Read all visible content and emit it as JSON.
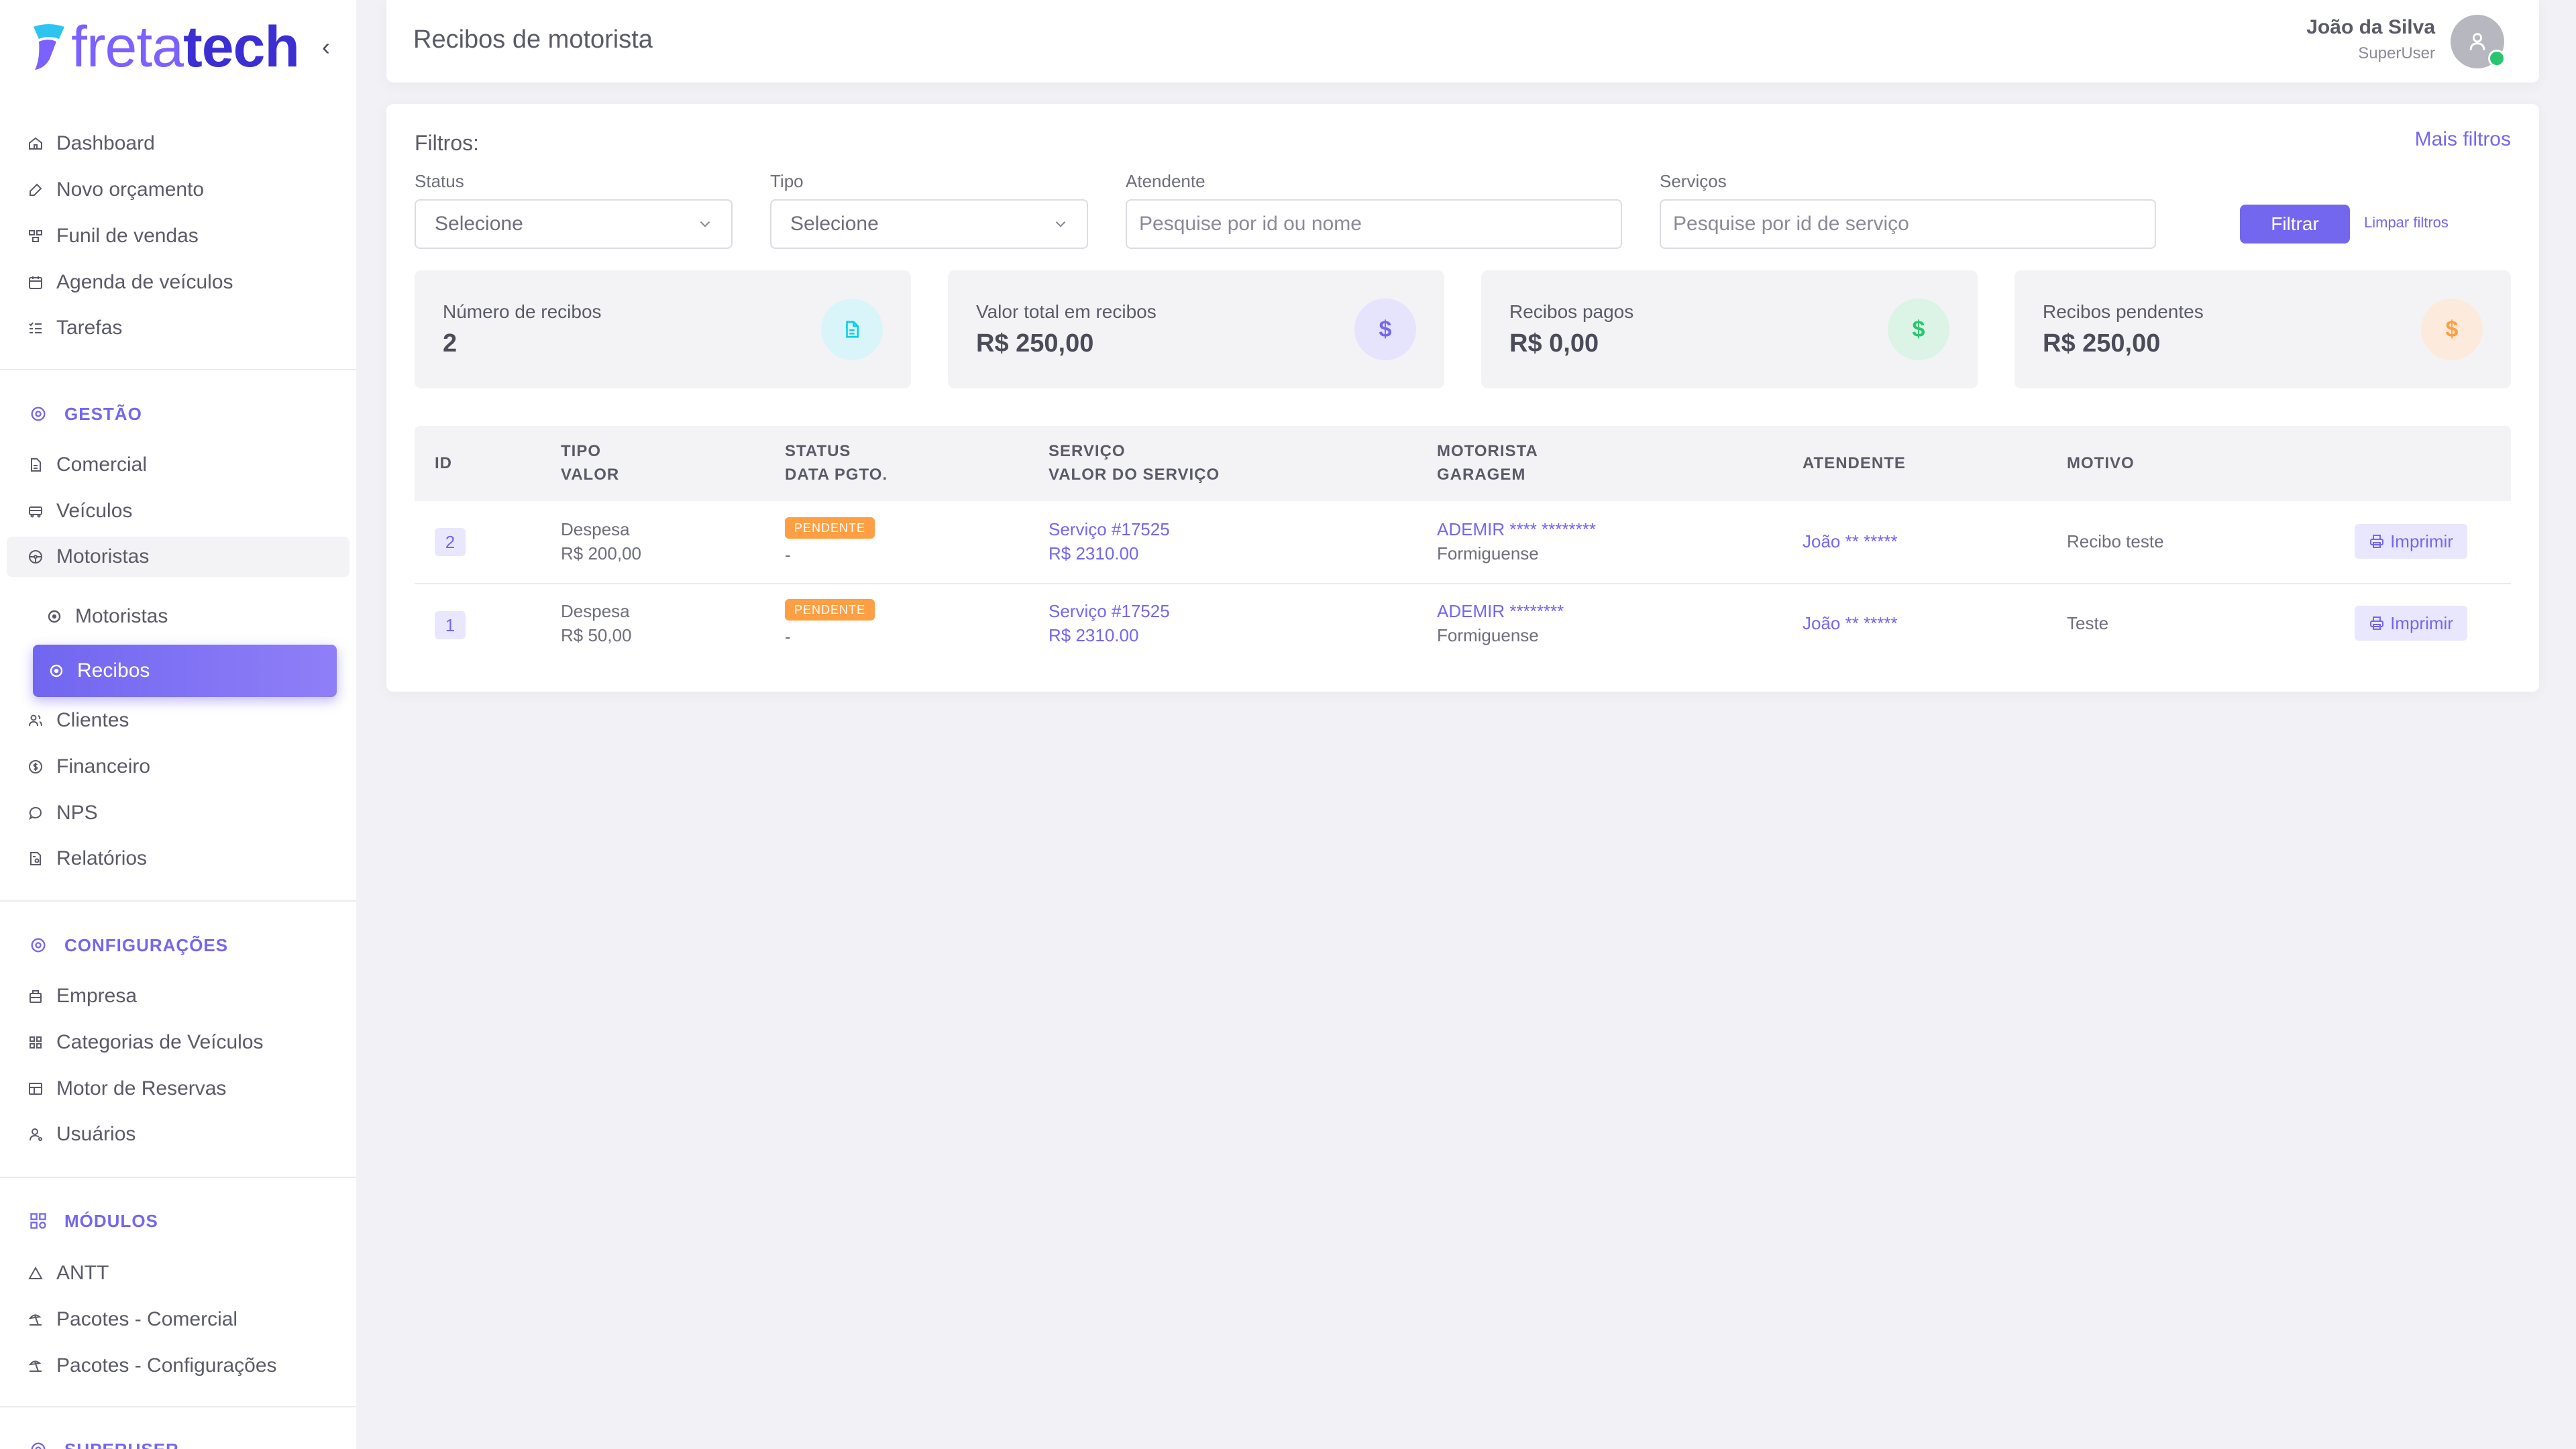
{
  "brand": {
    "part1": "freta",
    "part2": "tech"
  },
  "sidebar": {
    "collapse_glyph": "‹",
    "top": [
      {
        "label": "Dashboard",
        "icon": "home-icon"
      },
      {
        "label": "Novo orçamento",
        "icon": "edit-icon"
      },
      {
        "label": "Funil de vendas",
        "icon": "funnel-icon"
      },
      {
        "label": "Agenda de veículos",
        "icon": "calendar-icon"
      },
      {
        "label": "Tarefas",
        "icon": "list-check-icon"
      }
    ],
    "gestao": {
      "title": "GESTÃO",
      "items": [
        {
          "label": "Comercial",
          "icon": "file-icon"
        },
        {
          "label": "Veículos",
          "icon": "truck-icon"
        },
        {
          "label": "Motoristas",
          "icon": "steering-icon"
        },
        {
          "label": "Motoristas",
          "icon": "circle-icon"
        },
        {
          "label": "Recibos",
          "icon": "circle-icon"
        },
        {
          "label": "Clientes",
          "icon": "users-icon"
        },
        {
          "label": "Financeiro",
          "icon": "coin-icon"
        },
        {
          "label": "NPS",
          "icon": "message-icon"
        },
        {
          "label": "Relatórios",
          "icon": "report-icon"
        }
      ]
    },
    "config": {
      "title": "CONFIGURAÇÕES",
      "items": [
        {
          "label": "Empresa",
          "icon": "building-icon"
        },
        {
          "label": "Categorias de Veículos",
          "icon": "category-icon"
        },
        {
          "label": "Motor de Reservas",
          "icon": "table-icon"
        },
        {
          "label": "Usuários",
          "icon": "user-icon"
        }
      ]
    },
    "modulos": {
      "title": "MÓDULOS",
      "items": [
        {
          "label": "ANTT",
          "icon": "triangle-icon"
        },
        {
          "label": "Pacotes - Comercial",
          "icon": "beach-icon"
        },
        {
          "label": "Pacotes - Configurações",
          "icon": "beach-icon"
        }
      ]
    },
    "superuser": {
      "title": "SUPERUSER"
    }
  },
  "header": {
    "title": "Recibos de motorista",
    "user_name": "João da Silva",
    "user_role": "SuperUser"
  },
  "filters": {
    "title": "Filtros:",
    "more": "Mais filtros",
    "status_label": "Status",
    "status_value": "Selecione",
    "tipo_label": "Tipo",
    "tipo_value": "Selecione",
    "atendente_label": "Atendente",
    "atendente_placeholder": "Pesquise por id ou nome",
    "servicos_label": "Serviços",
    "servicos_placeholder": "Pesquise por id de serviço",
    "filter_btn": "Filtrar",
    "clear_btn": "Limpar filtros"
  },
  "stats": [
    {
      "label": "Número de recibos",
      "value": "2",
      "icon": "document-icon",
      "color": "#00cfe8",
      "bg": "#d9f5f9"
    },
    {
      "label": "Valor total em recibos",
      "value": "R$ 250,00",
      "icon": "dollar-icon",
      "color": "#7367f0",
      "bg": "#e6e3fc"
    },
    {
      "label": "Recibos pagos",
      "value": "R$ 0,00",
      "icon": "dollar-icon",
      "color": "#28c76f",
      "bg": "#dcf4e6"
    },
    {
      "label": "Recibos pendentes",
      "value": "R$ 250,00",
      "icon": "dollar-icon",
      "color": "#ff9f43",
      "bg": "#fcebdc"
    }
  ],
  "table": {
    "headers": {
      "id": "ID",
      "tipo": "TIPO",
      "valor": "VALOR",
      "status": "STATUS",
      "data_pgto": "DATA PGTO.",
      "servico": "SERVIÇO",
      "valor_servico": "VALOR DO SERVIÇO",
      "motorista": "MOTORISTA",
      "garagem": "GARAGEM",
      "atendente": "ATENDENTE",
      "motivo": "MOTIVO"
    },
    "rows": [
      {
        "id": "2",
        "tipo": "Despesa",
        "valor": "R$ 200,00",
        "status": "PENDENTE",
        "data_pgto": "-",
        "servico": "Serviço #17525",
        "valor_servico": "R$ 2310.00",
        "motorista": "ADEMIR **** ********",
        "garagem": "Formiguense",
        "atendente": "João ** *****",
        "motivo": "Recibo teste",
        "action": "Imprimir"
      },
      {
        "id": "1",
        "tipo": "Despesa",
        "valor": "R$ 50,00",
        "status": "PENDENTE",
        "data_pgto": "-",
        "servico": "Serviço #17525",
        "valor_servico": "R$ 2310.00",
        "motorista": "ADEMIR ********",
        "garagem": "Formiguense",
        "atendente": "João ** *****",
        "motivo": "Teste",
        "action": "Imprimir"
      }
    ]
  },
  "colors": {
    "accent": "#7367f0",
    "warning": "#ff9f43",
    "success": "#28c76f",
    "info": "#00cfe8"
  }
}
